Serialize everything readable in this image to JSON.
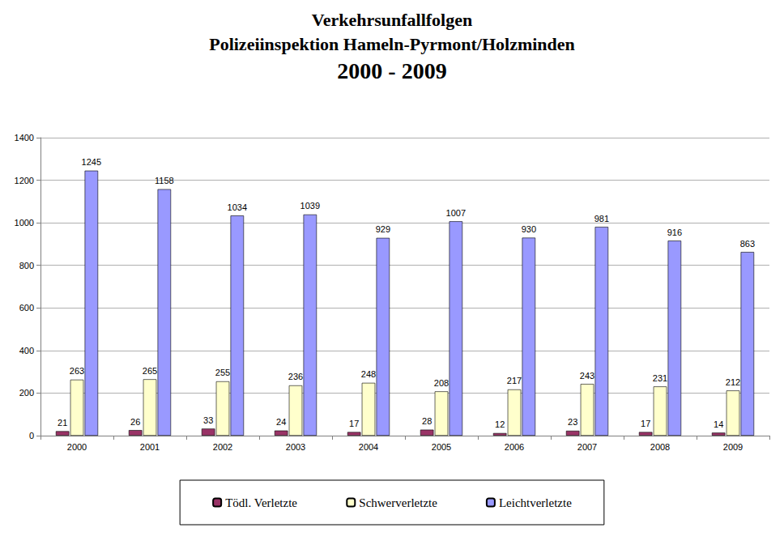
{
  "chart_data": {
    "type": "bar",
    "title": "Verkehrsunfallfolgen\nPolizeiinspektion Hameln-Pyrmont/Holzminden\n2000 - 2009",
    "categories": [
      "2000",
      "2001",
      "2002",
      "2003",
      "2004",
      "2005",
      "2006",
      "2007",
      "2008",
      "2009"
    ],
    "series": [
      {
        "name": "Tödl. Verletzte",
        "color": "#993366",
        "values": [
          21,
          26,
          33,
          24,
          17,
          28,
          12,
          23,
          17,
          14
        ]
      },
      {
        "name": "Schwerverletzte",
        "color": "#ffffcc",
        "values": [
          263,
          265,
          255,
          236,
          248,
          208,
          217,
          243,
          231,
          212
        ]
      },
      {
        "name": "Leichtverletzte",
        "color": "#9999ff",
        "values": [
          1245,
          1158,
          1034,
          1039,
          929,
          1007,
          930,
          981,
          916,
          863
        ]
      }
    ],
    "ylim": [
      0,
      1400
    ],
    "yticks": [
      0,
      200,
      400,
      600,
      800,
      1000,
      1200,
      1400
    ],
    "grid": true,
    "legend": "bottom",
    "data_labels": true
  }
}
